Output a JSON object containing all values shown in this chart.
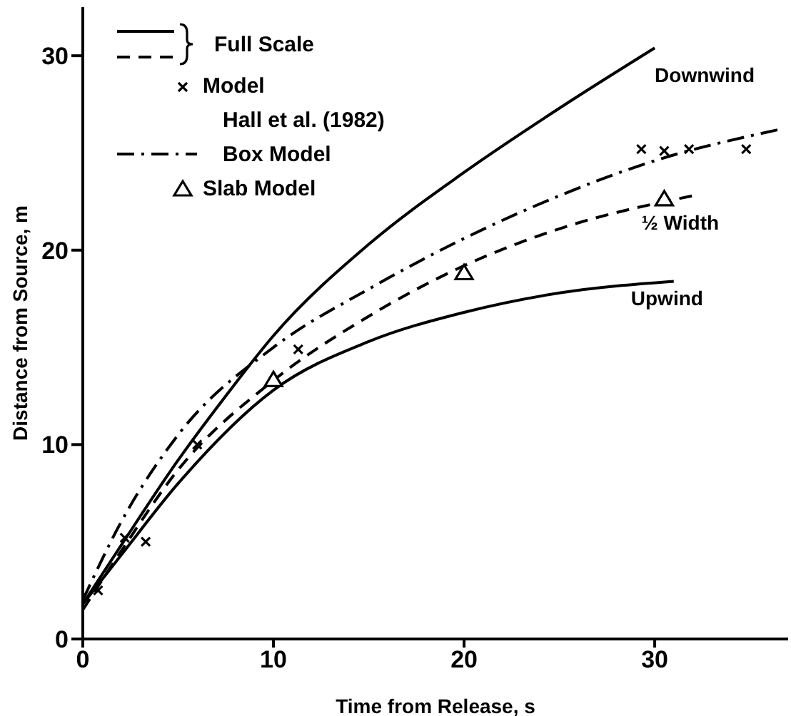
{
  "chart_data": {
    "type": "line",
    "xlabel": "Time from Release, s",
    "ylabel": "Distance from Source, m",
    "xlim": [
      0,
      37
    ],
    "ylim": [
      0,
      32.5
    ],
    "xticks": [
      0,
      10,
      20,
      30
    ],
    "yticks": [
      0,
      10,
      20,
      30
    ],
    "grid": false,
    "legend": "top left",
    "annotations": [
      "Full Scale",
      "Hall et al. (1982)"
    ],
    "series": [
      {
        "name": "Downwind",
        "color": "#000000",
        "line_style": "solid",
        "x": [
          0,
          2,
          5,
          7.5,
          10,
          15,
          20,
          25,
          30
        ],
        "values": [
          1.8,
          4.8,
          9.2,
          12.5,
          15.6,
          20.3,
          24,
          27.3,
          30.4
        ]
      },
      {
        "name": "Upwind",
        "color": "#000000",
        "line_style": "solid",
        "x": [
          0,
          2,
          5,
          10,
          15,
          20,
          25,
          31
        ],
        "values": [
          1.8,
          4.3,
          8,
          12.8,
          15.3,
          16.8,
          17.8,
          18.4
        ]
      },
      {
        "name": "½ Width",
        "color": "#000000",
        "line_style": "dashed",
        "x": [
          0,
          2,
          5,
          10,
          15,
          20,
          25,
          32
        ],
        "values": [
          1.5,
          4.5,
          8.7,
          13.3,
          16.6,
          19.2,
          21.1,
          22.8
        ]
      },
      {
        "name": "Model",
        "type": "scatter",
        "color": "#000000",
        "marker": "cross",
        "x": [
          0.8,
          2.2,
          3.3,
          6,
          11.3,
          29.3,
          30.5,
          31.8,
          34.8
        ],
        "values": [
          2.5,
          5.2,
          5,
          10,
          14.9,
          25.2,
          25.1,
          25.2,
          25.2
        ]
      },
      {
        "name": "Box Model",
        "color": "#000000",
        "line_style": "dashdot",
        "x": [
          0,
          2,
          5,
          10,
          15,
          20,
          25,
          30,
          36.5
        ],
        "values": [
          2,
          6,
          10.5,
          15,
          18,
          20.6,
          22.8,
          24.6,
          26.2
        ]
      },
      {
        "name": "Slab Model",
        "type": "scatter",
        "color": "#000000",
        "marker": "triangle",
        "x": [
          10,
          20,
          30.5
        ],
        "values": [
          13.3,
          18.8,
          22.6
        ]
      }
    ]
  }
}
